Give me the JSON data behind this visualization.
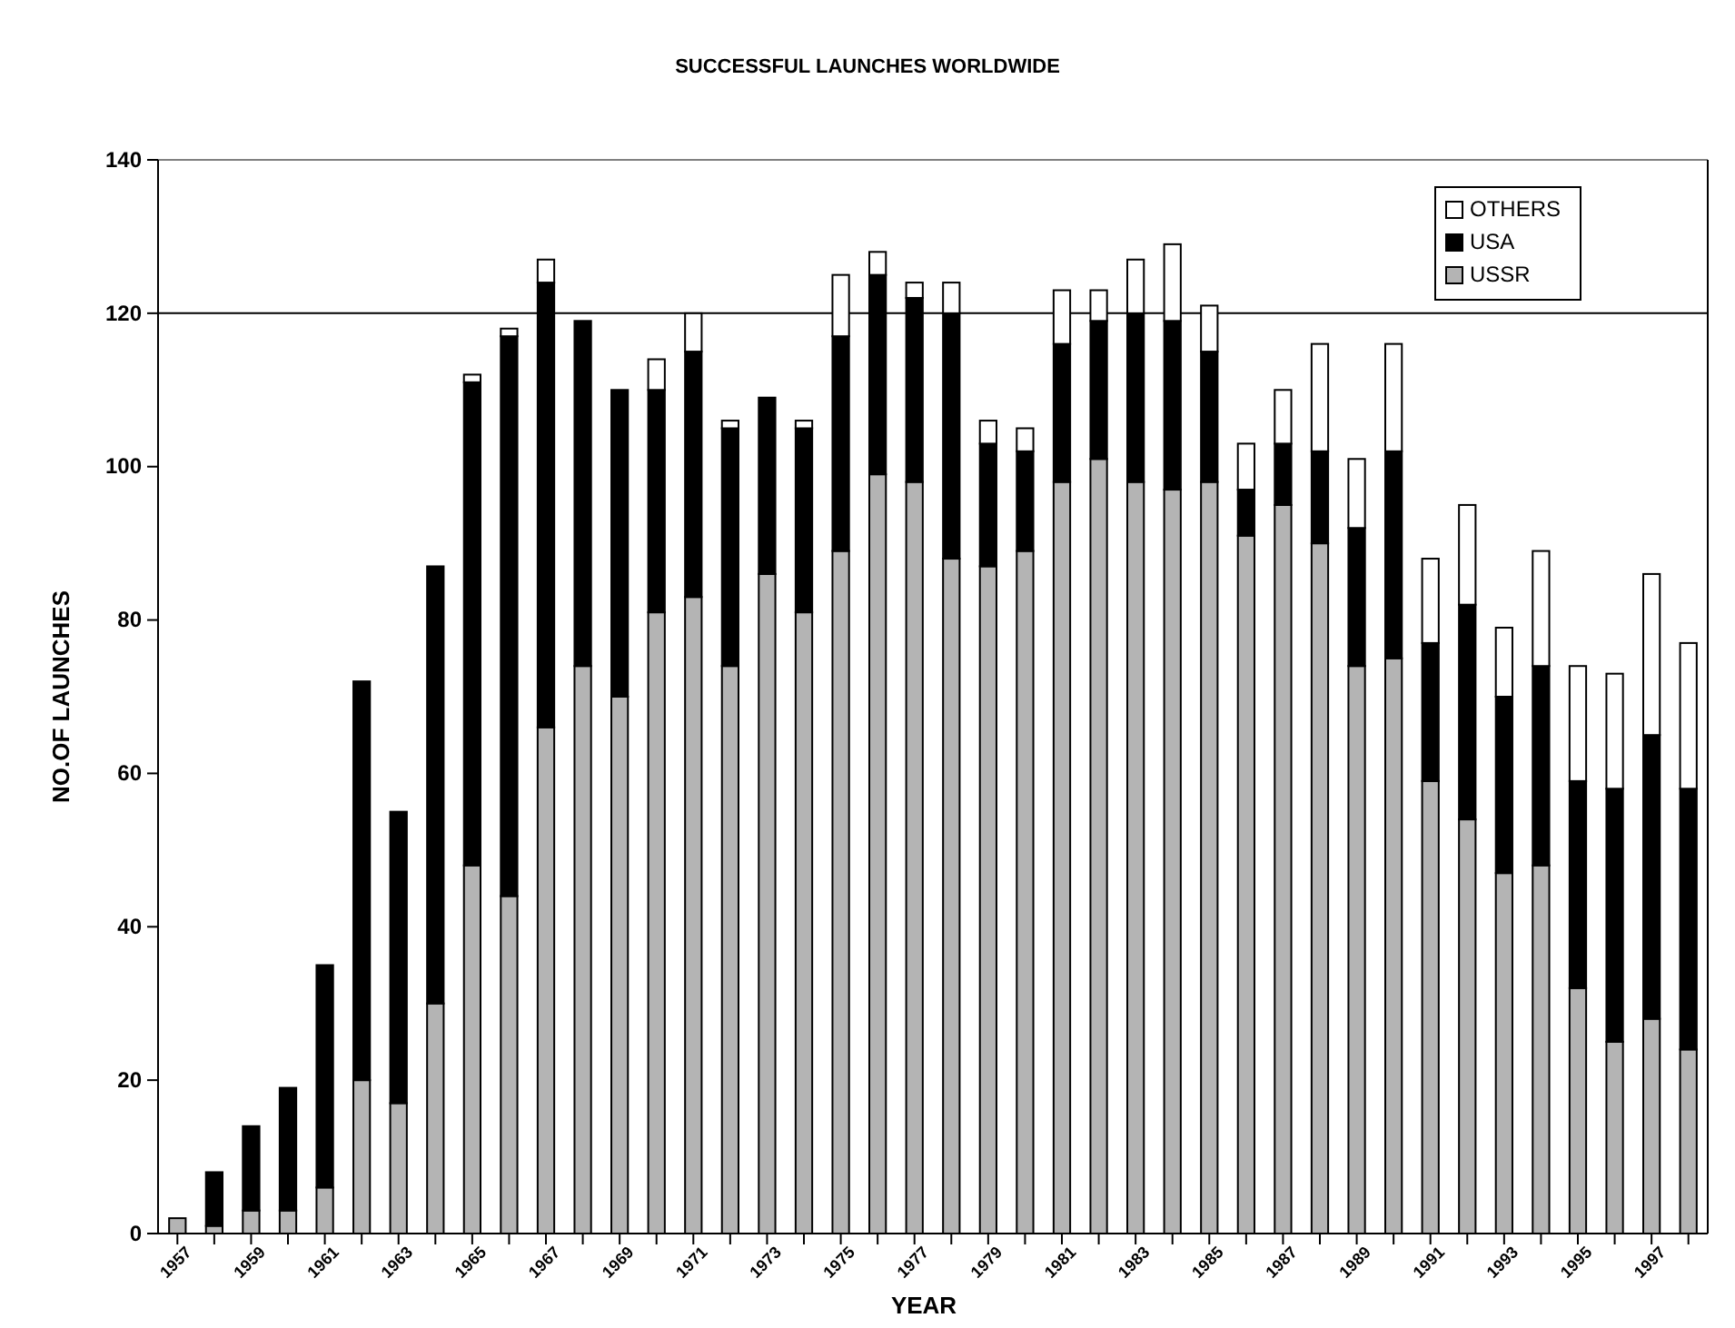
{
  "chart_data": {
    "type": "bar",
    "title": "SUCCESSFUL LAUNCHES WORLDWIDE",
    "xlabel": "YEAR",
    "ylabel": "NO.OF LAUNCHES",
    "categories": [
      "1957",
      null,
      "1959",
      null,
      "1961",
      null,
      "1963",
      null,
      "1965",
      null,
      "1967",
      null,
      "1969",
      null,
      "1971",
      null,
      "1973",
      null,
      "1975",
      null,
      "1977",
      null,
      "1979",
      null,
      "1981",
      null,
      "1983",
      null,
      "1985",
      null,
      "1987",
      null,
      "1989",
      null,
      "1991",
      null,
      "1993",
      null,
      "1995",
      null,
      "1997",
      null
    ],
    "stacked": true,
    "series": [
      {
        "name": "USSR",
        "color": "#b4b4b4",
        "values": [
          2,
          1,
          3,
          3,
          6,
          20,
          17,
          30,
          48,
          44,
          66,
          74,
          70,
          81,
          83,
          74,
          86,
          81,
          89,
          99,
          98,
          88,
          87,
          89,
          98,
          101,
          98,
          97,
          98,
          91,
          95,
          90,
          74,
          75,
          59,
          54,
          47,
          48,
          32,
          25,
          28,
          24
        ]
      },
      {
        "name": "USA",
        "color": "#000000",
        "values": [
          0,
          7,
          11,
          16,
          29,
          52,
          38,
          57,
          63,
          73,
          58,
          45,
          40,
          29,
          32,
          31,
          23,
          24,
          28,
          26,
          24,
          32,
          16,
          13,
          18,
          18,
          22,
          22,
          17,
          6,
          8,
          12,
          18,
          27,
          18,
          28,
          23,
          26,
          27,
          33,
          37,
          34
        ]
      },
      {
        "name": "OTHERS",
        "color": "#ffffff",
        "values": [
          0,
          0,
          0,
          0,
          0,
          0,
          0,
          0,
          1,
          1,
          3,
          0,
          0,
          4,
          5,
          1,
          0,
          1,
          8,
          3,
          2,
          4,
          3,
          3,
          7,
          4,
          7,
          10,
          6,
          6,
          7,
          14,
          9,
          14,
          11,
          13,
          9,
          15,
          15,
          15,
          21,
          19
        ]
      }
    ],
    "ylim": [
      0,
      140
    ],
    "yticks": [
      0,
      20,
      40,
      60,
      80,
      100,
      120,
      140
    ],
    "ref_lines": [
      {
        "axis": "y",
        "value": 120
      }
    ],
    "legend": "top right"
  }
}
